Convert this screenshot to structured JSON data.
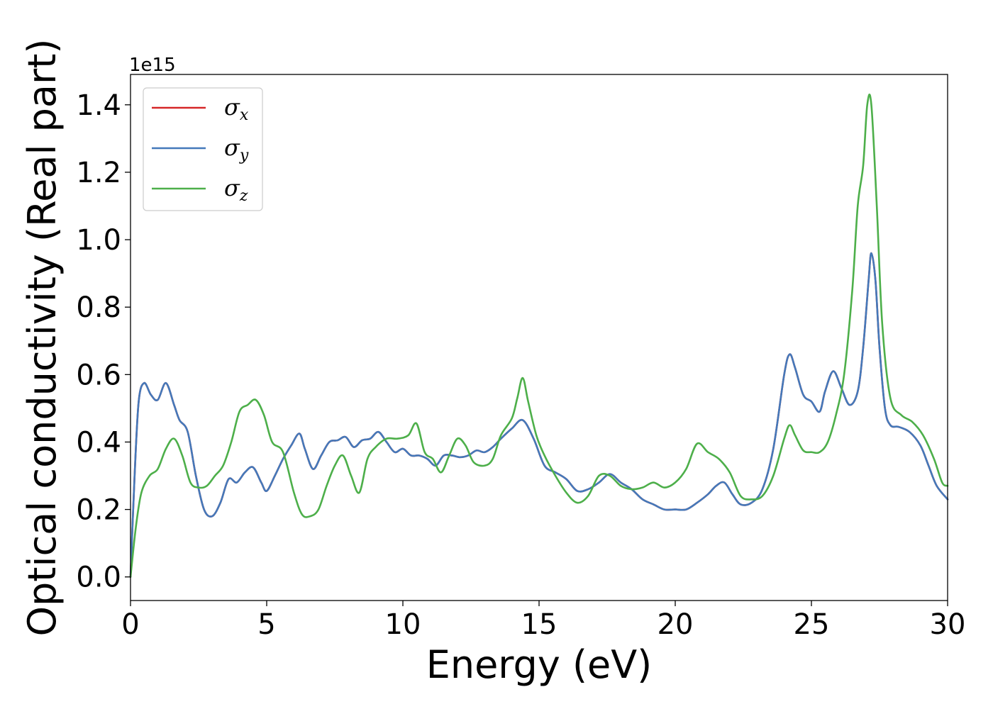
{
  "chart_data": {
    "type": "line",
    "xlabel": "Energy (eV)",
    "ylabel": "Optical conductivity (Real part)",
    "y_offset_label": "1e15",
    "xlim": [
      0,
      30
    ],
    "ylim": [
      -0.07,
      1.49
    ],
    "x_ticks": [
      0,
      5,
      10,
      15,
      20,
      25,
      30
    ],
    "x_tick_labels": [
      "0",
      "5",
      "10",
      "15",
      "20",
      "25",
      "30"
    ],
    "y_ticks": [
      0.0,
      0.2,
      0.4,
      0.6,
      0.8,
      1.0,
      1.2,
      1.4
    ],
    "y_tick_labels": [
      "0.0",
      "0.2",
      "0.4",
      "0.6",
      "0.8",
      "1.0",
      "1.2",
      "1.4"
    ],
    "grid": false,
    "legend_position": "top-left",
    "series": [
      {
        "name": "σ",
        "subscript": "x",
        "color": "#d62728",
        "x": [
          0,
          0.15,
          0.3,
          0.5,
          0.75,
          1.0,
          1.3,
          1.6,
          1.8,
          2.1,
          2.4,
          2.7,
          3.0,
          3.3,
          3.6,
          3.9,
          4.2,
          4.5,
          4.8,
          5.0,
          5.3,
          5.6,
          5.9,
          6.2,
          6.4,
          6.7,
          7.0,
          7.3,
          7.6,
          7.9,
          8.2,
          8.5,
          8.8,
          9.1,
          9.4,
          9.7,
          10.0,
          10.3,
          10.6,
          10.9,
          11.2,
          11.5,
          11.8,
          12.1,
          12.4,
          12.7,
          13.0,
          13.3,
          13.6,
          14.0,
          14.4,
          14.8,
          15.2,
          15.6,
          16.0,
          16.4,
          16.8,
          17.2,
          17.6,
          18.0,
          18.4,
          18.8,
          19.2,
          19.6,
          20.0,
          20.4,
          20.8,
          21.2,
          21.5,
          21.8,
          22.1,
          22.4,
          22.8,
          23.2,
          23.6,
          24.0,
          24.2,
          24.4,
          24.7,
          25.0,
          25.3,
          25.5,
          25.8,
          26.1,
          26.4,
          26.7,
          26.9,
          27.1,
          27.2,
          27.35,
          27.5,
          27.7,
          27.9,
          28.2,
          28.6,
          29.0,
          29.3,
          29.6,
          30.0
        ],
        "values": [
          0.0,
          0.3,
          0.52,
          0.575,
          0.54,
          0.525,
          0.575,
          0.51,
          0.465,
          0.43,
          0.3,
          0.2,
          0.18,
          0.22,
          0.29,
          0.28,
          0.31,
          0.325,
          0.28,
          0.255,
          0.3,
          0.35,
          0.39,
          0.425,
          0.38,
          0.32,
          0.36,
          0.4,
          0.405,
          0.415,
          0.385,
          0.405,
          0.41,
          0.43,
          0.4,
          0.37,
          0.38,
          0.36,
          0.36,
          0.35,
          0.33,
          0.36,
          0.36,
          0.355,
          0.36,
          0.375,
          0.37,
          0.385,
          0.41,
          0.44,
          0.465,
          0.41,
          0.33,
          0.31,
          0.29,
          0.255,
          0.26,
          0.28,
          0.305,
          0.28,
          0.26,
          0.23,
          0.215,
          0.2,
          0.2,
          0.2,
          0.22,
          0.245,
          0.27,
          0.28,
          0.245,
          0.215,
          0.22,
          0.26,
          0.38,
          0.6,
          0.66,
          0.62,
          0.54,
          0.52,
          0.49,
          0.55,
          0.61,
          0.56,
          0.51,
          0.55,
          0.68,
          0.88,
          0.96,
          0.88,
          0.68,
          0.5,
          0.45,
          0.445,
          0.43,
          0.39,
          0.33,
          0.27,
          0.23
        ]
      },
      {
        "name": "σ",
        "subscript": "y",
        "color": "#4479ba",
        "x": [
          0,
          0.15,
          0.3,
          0.5,
          0.75,
          1.0,
          1.3,
          1.6,
          1.8,
          2.1,
          2.4,
          2.7,
          3.0,
          3.3,
          3.6,
          3.9,
          4.2,
          4.5,
          4.8,
          5.0,
          5.3,
          5.6,
          5.9,
          6.2,
          6.4,
          6.7,
          7.0,
          7.3,
          7.6,
          7.9,
          8.2,
          8.5,
          8.8,
          9.1,
          9.4,
          9.7,
          10.0,
          10.3,
          10.6,
          10.9,
          11.2,
          11.5,
          11.8,
          12.1,
          12.4,
          12.7,
          13.0,
          13.3,
          13.6,
          14.0,
          14.4,
          14.8,
          15.2,
          15.6,
          16.0,
          16.4,
          16.8,
          17.2,
          17.6,
          18.0,
          18.4,
          18.8,
          19.2,
          19.6,
          20.0,
          20.4,
          20.8,
          21.2,
          21.5,
          21.8,
          22.1,
          22.4,
          22.8,
          23.2,
          23.6,
          24.0,
          24.2,
          24.4,
          24.7,
          25.0,
          25.3,
          25.5,
          25.8,
          26.1,
          26.4,
          26.7,
          26.9,
          27.1,
          27.2,
          27.35,
          27.5,
          27.7,
          27.9,
          28.2,
          28.6,
          29.0,
          29.3,
          29.6,
          30.0
        ],
        "values": [
          0.0,
          0.3,
          0.52,
          0.575,
          0.54,
          0.525,
          0.575,
          0.51,
          0.465,
          0.43,
          0.3,
          0.2,
          0.18,
          0.22,
          0.29,
          0.28,
          0.31,
          0.325,
          0.28,
          0.255,
          0.3,
          0.35,
          0.39,
          0.425,
          0.38,
          0.32,
          0.36,
          0.4,
          0.405,
          0.415,
          0.385,
          0.405,
          0.41,
          0.43,
          0.4,
          0.37,
          0.38,
          0.36,
          0.36,
          0.35,
          0.33,
          0.36,
          0.36,
          0.355,
          0.36,
          0.375,
          0.37,
          0.385,
          0.41,
          0.44,
          0.465,
          0.41,
          0.33,
          0.31,
          0.29,
          0.255,
          0.26,
          0.28,
          0.305,
          0.28,
          0.26,
          0.23,
          0.215,
          0.2,
          0.2,
          0.2,
          0.22,
          0.245,
          0.27,
          0.28,
          0.245,
          0.215,
          0.22,
          0.26,
          0.38,
          0.6,
          0.66,
          0.62,
          0.54,
          0.52,
          0.49,
          0.55,
          0.61,
          0.56,
          0.51,
          0.55,
          0.68,
          0.88,
          0.96,
          0.88,
          0.68,
          0.5,
          0.45,
          0.445,
          0.43,
          0.39,
          0.33,
          0.27,
          0.23
        ]
      },
      {
        "name": "σ",
        "subscript": "z",
        "color": "#4daf4a",
        "x": [
          0,
          0.2,
          0.4,
          0.7,
          1.0,
          1.3,
          1.6,
          1.9,
          2.2,
          2.5,
          2.8,
          3.1,
          3.4,
          3.7,
          4.0,
          4.3,
          4.6,
          4.9,
          5.2,
          5.6,
          6.0,
          6.3,
          6.6,
          6.9,
          7.2,
          7.5,
          7.8,
          8.1,
          8.4,
          8.7,
          9.0,
          9.4,
          9.8,
          10.2,
          10.5,
          10.8,
          11.1,
          11.4,
          11.7,
          12.0,
          12.3,
          12.6,
          13.0,
          13.3,
          13.6,
          14.0,
          14.2,
          14.4,
          14.6,
          14.9,
          15.2,
          15.6,
          16.0,
          16.4,
          16.8,
          17.2,
          17.6,
          18.0,
          18.4,
          18.8,
          19.2,
          19.6,
          20.0,
          20.4,
          20.8,
          21.2,
          21.6,
          22.0,
          22.4,
          22.8,
          23.2,
          23.6,
          24.0,
          24.2,
          24.4,
          24.7,
          25.0,
          25.3,
          25.6,
          25.9,
          26.2,
          26.5,
          26.7,
          26.9,
          27.05,
          27.2,
          27.4,
          27.6,
          27.9,
          28.3,
          28.7,
          29.1,
          29.5,
          29.8,
          30.0
        ],
        "values": [
          0.0,
          0.15,
          0.25,
          0.3,
          0.32,
          0.38,
          0.41,
          0.36,
          0.28,
          0.265,
          0.27,
          0.3,
          0.33,
          0.4,
          0.49,
          0.51,
          0.525,
          0.48,
          0.4,
          0.37,
          0.25,
          0.185,
          0.18,
          0.2,
          0.27,
          0.33,
          0.36,
          0.3,
          0.25,
          0.35,
          0.385,
          0.41,
          0.41,
          0.42,
          0.455,
          0.37,
          0.35,
          0.31,
          0.36,
          0.41,
          0.39,
          0.34,
          0.33,
          0.35,
          0.42,
          0.47,
          0.53,
          0.59,
          0.52,
          0.42,
          0.36,
          0.3,
          0.25,
          0.22,
          0.24,
          0.3,
          0.3,
          0.27,
          0.26,
          0.265,
          0.28,
          0.265,
          0.28,
          0.32,
          0.395,
          0.37,
          0.35,
          0.31,
          0.24,
          0.23,
          0.24,
          0.3,
          0.41,
          0.45,
          0.42,
          0.375,
          0.37,
          0.37,
          0.4,
          0.48,
          0.6,
          0.85,
          1.1,
          1.22,
          1.4,
          1.4,
          1.1,
          0.75,
          0.53,
          0.48,
          0.46,
          0.42,
          0.35,
          0.28,
          0.27
        ]
      }
    ]
  }
}
